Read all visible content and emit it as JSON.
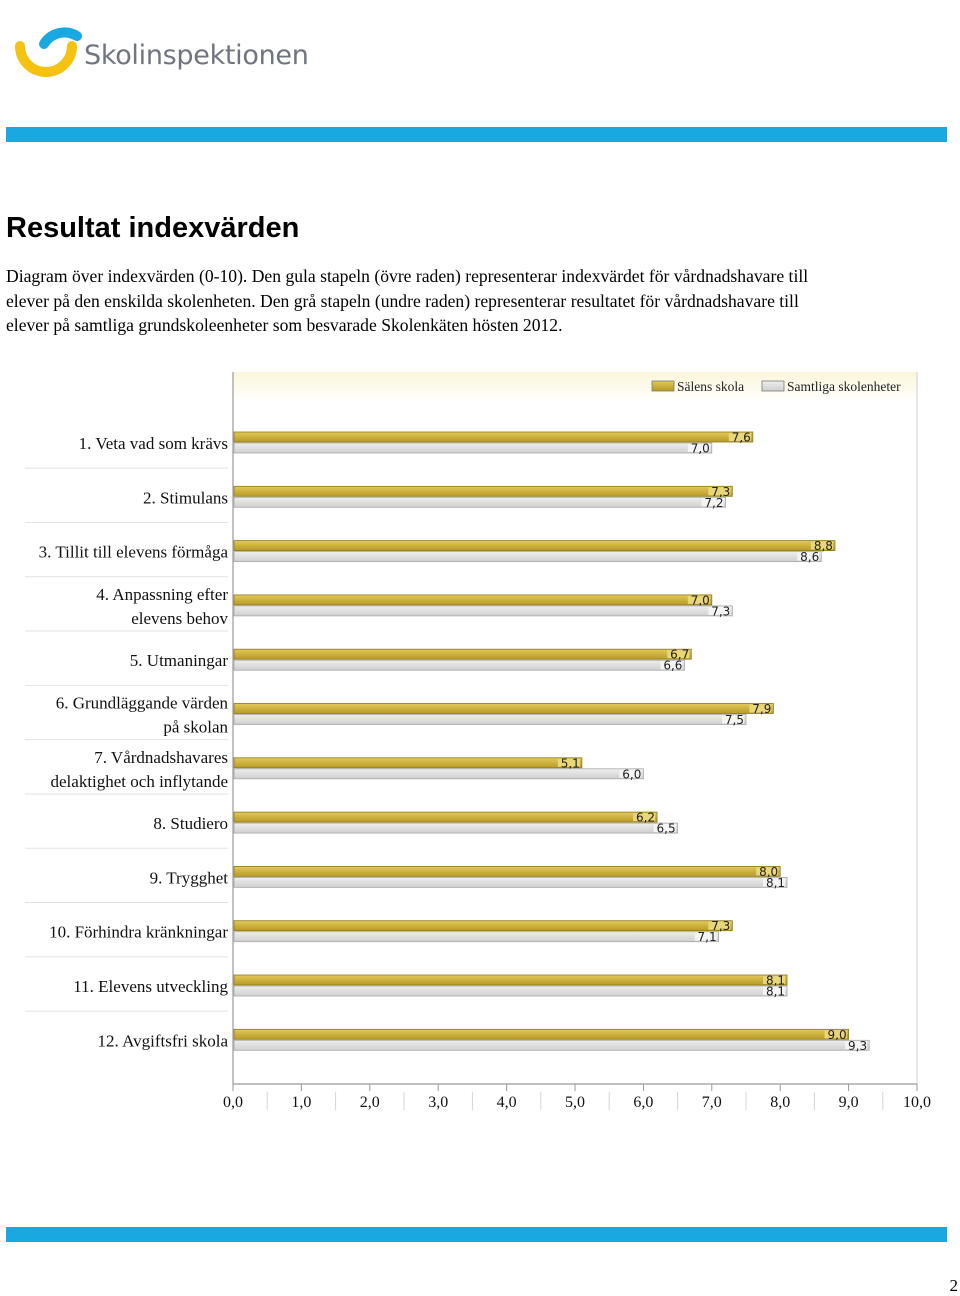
{
  "header": {
    "logo_text": "Skolinspektionen",
    "brand_colors": {
      "blue": "#1aa8e0",
      "yellow": "#f5c211",
      "band": "#1aa8e0"
    }
  },
  "title": "Resultat indexvärden",
  "description_lines": [
    "Diagram över indexvärden (0-10). Den gula stapeln (övre raden) representerar indexvärdet för vårdnadshavare till",
    "elever på den enskilda skolenheten. Den grå stapeln (undre raden) representerar resultatet för vårdnadshavare till",
    "elever på samtliga grundskoleenheter som besvarade Skolenkäten hösten 2012."
  ],
  "chart_data": {
    "type": "bar",
    "orientation": "horizontal",
    "categories": [
      [
        "1. Veta vad som krävs"
      ],
      [
        "2. Stimulans"
      ],
      [
        "3. Tillit till elevens förmåga"
      ],
      [
        "4. Anpassning efter",
        "elevens behov"
      ],
      [
        "5. Utmaningar"
      ],
      [
        "6. Grundläggande värden",
        "på skolan"
      ],
      [
        "7. Vårdnadshavares",
        "delaktighet och inflytande"
      ],
      [
        "8. Studiero"
      ],
      [
        "9. Trygghet"
      ],
      [
        "10. Förhindra kränkningar"
      ],
      [
        "11. Elevens utveckling"
      ],
      [
        "12. Avgiftsfri skola"
      ]
    ],
    "series": [
      {
        "name": "Sälens skola",
        "color": "#d4b43c",
        "values": [
          7.6,
          7.3,
          8.8,
          7.0,
          6.7,
          7.9,
          5.1,
          6.2,
          8.0,
          7.3,
          8.1,
          9.0
        ],
        "labels": [
          "7,6",
          "7,3",
          "8,8",
          "7,0",
          "6,7",
          "7,9",
          "5,1",
          "6,2",
          "8,0",
          "7,3",
          "8,1",
          "9,0"
        ]
      },
      {
        "name": "Samtliga skolenheter",
        "color": "#dadada",
        "values": [
          7.0,
          7.2,
          8.6,
          7.3,
          6.6,
          7.5,
          6.0,
          6.5,
          8.1,
          7.1,
          8.1,
          9.3
        ],
        "labels": [
          "7,0",
          "7,2",
          "8,6",
          "7,3",
          "6,6",
          "7,5",
          "6,0",
          "6,5",
          "8,1",
          "7,1",
          "8,1",
          "9,3"
        ]
      }
    ],
    "xlim": [
      0,
      10
    ],
    "xticks": [
      "0,0",
      "1,0",
      "2,0",
      "3,0",
      "4,0",
      "5,0",
      "6,0",
      "7,0",
      "8,0",
      "9,0",
      "10,0"
    ],
    "legend": "top-right",
    "grid": false
  },
  "footer": {
    "page_number": "2"
  }
}
